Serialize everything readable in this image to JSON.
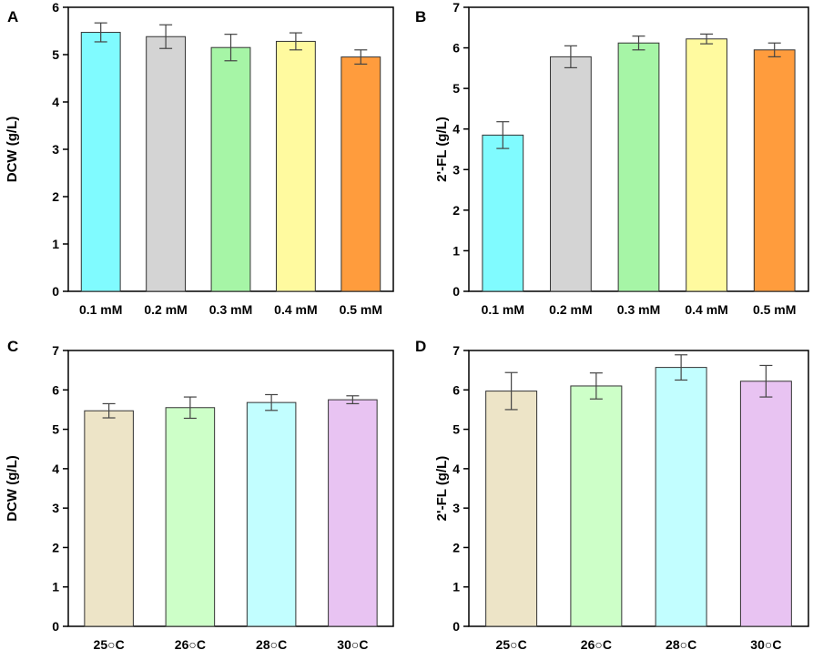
{
  "chart_data": [
    {
      "panel": "A",
      "type": "bar",
      "ylabel": "DCW (g/L)",
      "ylim": [
        0,
        6
      ],
      "yticks": [
        0,
        1,
        2,
        3,
        4,
        5,
        6
      ],
      "categories": [
        "0.1 mM",
        "0.2 mM",
        "0.3 mM",
        "0.4 mM",
        "0.5 mM"
      ],
      "values": [
        5.47,
        5.38,
        5.15,
        5.28,
        4.95
      ],
      "errors": [
        0.2,
        0.25,
        0.28,
        0.18,
        0.15
      ],
      "colors": [
        "#80fbff",
        "#d4d4d4",
        "#a6f5a6",
        "#fffa9f",
        "#ff9c3d"
      ]
    },
    {
      "panel": "B",
      "type": "bar",
      "ylabel": "2'-FL (g/L)",
      "ylim": [
        0,
        7
      ],
      "yticks": [
        0,
        1,
        2,
        3,
        4,
        5,
        6,
        7
      ],
      "categories": [
        "0.1 mM",
        "0.2 mM",
        "0.3 mM",
        "0.4 mM",
        "0.5 mM"
      ],
      "values": [
        3.85,
        5.78,
        6.12,
        6.22,
        5.95
      ],
      "errors": [
        0.33,
        0.27,
        0.17,
        0.12,
        0.17
      ],
      "colors": [
        "#80fbff",
        "#d4d4d4",
        "#a6f5a6",
        "#fffa9f",
        "#ff9c3d"
      ]
    },
    {
      "panel": "C",
      "type": "bar",
      "ylabel": "DCW (g/L)",
      "ylim": [
        0,
        7
      ],
      "yticks": [
        0,
        1,
        2,
        3,
        4,
        5,
        6,
        7
      ],
      "categories": [
        "25○C",
        "26○C",
        "28○C",
        "30○C"
      ],
      "values": [
        5.47,
        5.55,
        5.68,
        5.75
      ],
      "errors": [
        0.18,
        0.27,
        0.2,
        0.1
      ],
      "colors": [
        "#ede4c7",
        "#cdffc8",
        "#c2feff",
        "#e8c3f2"
      ]
    },
    {
      "panel": "D",
      "type": "bar",
      "ylabel": "2'-FL (g/L)",
      "ylim": [
        0,
        7
      ],
      "yticks": [
        0,
        1,
        2,
        3,
        4,
        5,
        6,
        7
      ],
      "categories": [
        "25○C",
        "26○C",
        "28○C",
        "30○C"
      ],
      "values": [
        5.97,
        6.1,
        6.57,
        6.22
      ],
      "errors": [
        0.47,
        0.33,
        0.32,
        0.4
      ],
      "colors": [
        "#ede4c7",
        "#cdffc8",
        "#c2feff",
        "#e8c3f2"
      ]
    }
  ]
}
